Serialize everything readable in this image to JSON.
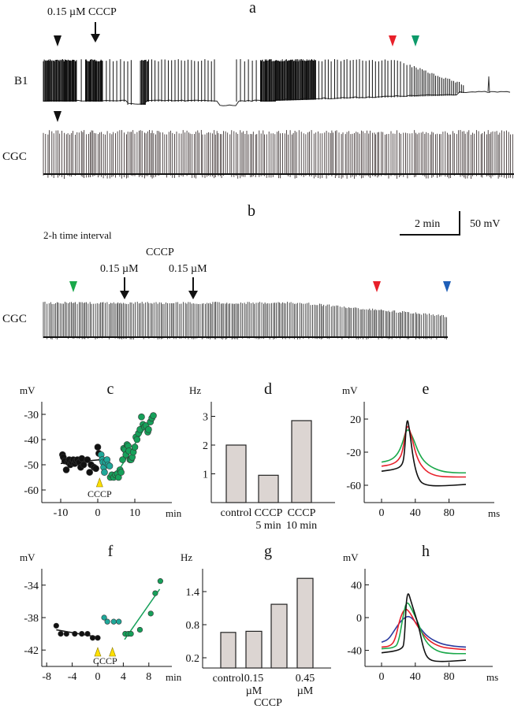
{
  "panel_a": {
    "letter": "a",
    "drug_label": "0.15 µM CCCP",
    "trace_labels": [
      "B1",
      "CGC"
    ],
    "marker_colors": {
      "black": "#111111",
      "red": "#e8202a",
      "green": "#0c9a6a"
    }
  },
  "panel_b": {
    "letter": "b",
    "interval_label": "2-h time interval",
    "drug_label": "CCCP",
    "dose_labels": [
      "0.15 µM",
      "0.15 µM"
    ],
    "trace_label": "CGC",
    "scale_time": "2 min",
    "scale_voltage": "50 mV",
    "marker_colors": {
      "green": "#1aa84a",
      "red": "#e8202a",
      "blue": "#1f5fb8"
    }
  },
  "chart_data": [
    {
      "panel": "c",
      "type": "scatter",
      "ylabel": "mV",
      "xlabel": "min",
      "xlim": [
        -14,
        20
      ],
      "ylim": [
        -65,
        -25
      ],
      "xticks": [
        "-10",
        "0",
        "10"
      ],
      "yticks": [
        "-30",
        "-40",
        "-50",
        "-60"
      ],
      "annotation": "CCCP",
      "annotation_x": 0.5,
      "series": [
        {
          "color": "#111111",
          "points": [
            [
              -9.5,
              -46
            ],
            [
              -9.3,
              -47
            ],
            [
              -8.9,
              -48.5
            ],
            [
              -8.5,
              -52
            ],
            [
              -8,
              -49
            ],
            [
              -7.7,
              -48
            ],
            [
              -7.4,
              -50
            ],
            [
              -7,
              -49
            ],
            [
              -6.6,
              -48
            ],
            [
              -6.2,
              -49.5
            ],
            [
              -5.9,
              -48.5
            ],
            [
              -5.5,
              -48
            ],
            [
              -5,
              -49
            ],
            [
              -4.6,
              -51
            ],
            [
              -4.3,
              -47.5
            ],
            [
              -3.8,
              -50
            ],
            [
              -2.8,
              -48
            ],
            [
              -2.2,
              -53
            ],
            [
              -1.8,
              -50
            ],
            [
              -1,
              -51
            ],
            [
              -0.5,
              -51.5
            ],
            [
              0,
              -43
            ],
            [
              0.3,
              -45.5
            ]
          ],
          "fit": [
            [
              -10,
              -49.5
            ],
            [
              0.5,
              -48
            ]
          ]
        },
        {
          "color": "#1fa89a",
          "points": [
            [
              0.9,
              -46
            ],
            [
              1.2,
              -48
            ],
            [
              1.4,
              -49
            ],
            [
              1.6,
              -51
            ],
            [
              1.8,
              -53
            ],
            [
              2.1,
              -49
            ],
            [
              2.5,
              -48
            ],
            [
              2.8,
              -50
            ],
            [
              3.2,
              -50.5
            ]
          ]
        },
        {
          "color": "#16a05a",
          "points": [
            [
              3.4,
              -55
            ],
            [
              3.8,
              -54
            ],
            [
              4.3,
              -55
            ],
            [
              4.8,
              -54
            ],
            [
              5.3,
              -53.5
            ],
            [
              5.6,
              -55
            ],
            [
              6,
              -52
            ],
            [
              6.3,
              -53
            ],
            [
              6.7,
              -48
            ],
            [
              7,
              -43.5
            ],
            [
              7.3,
              -44
            ],
            [
              7.6,
              -46
            ],
            [
              7.9,
              -42
            ],
            [
              8.2,
              -42.5
            ],
            [
              8.4,
              -44.5
            ],
            [
              8.7,
              -48
            ],
            [
              9,
              -48
            ],
            [
              9.3,
              -47
            ],
            [
              9.6,
              -45
            ],
            [
              10,
              -43
            ],
            [
              10.3,
              -39
            ],
            [
              10.6,
              -40
            ],
            [
              11,
              -37.5
            ],
            [
              11.4,
              -36
            ],
            [
              11.8,
              -31
            ],
            [
              12.2,
              -34
            ],
            [
              12.6,
              -35
            ],
            [
              13,
              -34.5
            ],
            [
              13.5,
              -37
            ],
            [
              13.7,
              -36
            ],
            [
              14.2,
              -33
            ],
            [
              14.6,
              -31.5
            ],
            [
              15,
              -30.5
            ]
          ],
          "fit": [
            [
              4.5,
              -55
            ],
            [
              14.5,
              -31
            ]
          ]
        }
      ]
    },
    {
      "panel": "d",
      "type": "bar",
      "ylabel": "Hz",
      "ylim": [
        0,
        3.3
      ],
      "yticks": [
        "1",
        "2",
        "3"
      ],
      "categories": [
        [
          "control"
        ],
        [
          "CCCP",
          "5 min"
        ],
        [
          "CCCP",
          "10 min"
        ]
      ],
      "values": [
        2.0,
        0.95,
        2.85
      ],
      "bar_color": "#dcd5d2"
    },
    {
      "panel": "e",
      "type": "line",
      "ylabel": "mV",
      "xlabel": "ms",
      "xlim": [
        -20,
        100
      ],
      "ylim": [
        -80,
        40
      ],
      "xticks": [
        "0",
        "40",
        "80"
      ],
      "yticks": [
        "20",
        "-20",
        "-60"
      ],
      "series": [
        {
          "color": "#1aa84a",
          "points": [
            [
              0,
              -32
            ],
            [
              10,
              -30
            ],
            [
              18,
              -24
            ],
            [
              24,
              -12
            ],
            [
              30,
              10
            ],
            [
              36,
              1
            ],
            [
              45,
              -24
            ],
            [
              55,
              -36
            ],
            [
              70,
              -43
            ],
            [
              85,
              -45
            ],
            [
              100,
              -45
            ]
          ]
        },
        {
          "color": "#e8202a",
          "points": [
            [
              0,
              -37
            ],
            [
              12,
              -35
            ],
            [
              20,
              -30
            ],
            [
              25,
              -20
            ],
            [
              30,
              16
            ],
            [
              35,
              2
            ],
            [
              42,
              -28
            ],
            [
              52,
              -43
            ],
            [
              65,
              -49
            ],
            [
              80,
              -50
            ],
            [
              100,
              -50
            ]
          ]
        },
        {
          "color": "#111111",
          "points": [
            [
              0,
              -43
            ],
            [
              15,
              -41
            ],
            [
              24,
              -37
            ],
            [
              27,
              -25
            ],
            [
              30,
              24
            ],
            [
              33,
              8
            ],
            [
              38,
              -32
            ],
            [
              44,
              -54
            ],
            [
              52,
              -60
            ],
            [
              70,
              -61
            ],
            [
              100,
              -59
            ]
          ]
        }
      ]
    },
    {
      "panel": "f",
      "type": "scatter",
      "ylabel": "mV",
      "xlabel": "min",
      "xlim": [
        -9,
        11
      ],
      "ylim": [
        -44,
        -32
      ],
      "xticks": [
        "-8",
        "-4",
        "0",
        "4",
        "8"
      ],
      "yticks": [
        "-34",
        "-38",
        "-42"
      ],
      "annotation": "CCCP",
      "annotation_x": [
        0,
        2.3
      ],
      "series": [
        {
          "color": "#111111",
          "points": [
            [
              -6.5,
              -39
            ],
            [
              -5.8,
              -40
            ],
            [
              -4.9,
              -40
            ],
            [
              -3.6,
              -40
            ],
            [
              -2.5,
              -40
            ],
            [
              -1.6,
              -40
            ],
            [
              -0.8,
              -40.5
            ],
            [
              0,
              -40.5
            ]
          ],
          "fit": [
            [
              -6.5,
              -39.5
            ],
            [
              0,
              -40.4
            ]
          ]
        },
        {
          "color": "#1fa89a",
          "points": [
            [
              1,
              -38
            ],
            [
              1.5,
              -38.5
            ],
            [
              2.5,
              -38.5
            ],
            [
              3.3,
              -38.5
            ]
          ]
        },
        {
          "color": "#16a05a",
          "points": [
            [
              4.3,
              -40
            ],
            [
              4.8,
              -40
            ],
            [
              5.2,
              -40
            ],
            [
              6.6,
              -39.5
            ],
            [
              8.3,
              -37.5
            ],
            [
              9,
              -35
            ],
            [
              9.8,
              -33.5
            ]
          ],
          "fit": [
            [
              4.2,
              -40.7
            ],
            [
              9.7,
              -34.5
            ]
          ]
        }
      ]
    },
    {
      "panel": "g",
      "type": "bar",
      "ylabel": "Hz",
      "ylim": [
        0,
        1.8
      ],
      "yticks": [
        "1.4",
        "0.8",
        "0.2"
      ],
      "categories": [
        [
          "control"
        ],
        [
          "0.15",
          "µM"
        ],
        [
          ""
        ],
        [
          "0.45",
          "µM"
        ]
      ],
      "group_label": "CCCP",
      "values": [
        0.66,
        0.68,
        1.17,
        1.64
      ],
      "bar_color": "#dcd5d2"
    },
    {
      "panel": "h",
      "type": "line",
      "ylabel": "mV",
      "xlabel": "ms",
      "xlim": [
        -20,
        100
      ],
      "ylim": [
        -60,
        60
      ],
      "xticks": [
        "0",
        "40",
        "80"
      ],
      "yticks": [
        "40",
        "0",
        "-40"
      ],
      "series": [
        {
          "color": "#2a3aa0",
          "points": [
            [
              0,
              -30
            ],
            [
              8,
              -27
            ],
            [
              15,
              -16
            ],
            [
              22,
              -5
            ],
            [
              30,
              2
            ],
            [
              36,
              0
            ],
            [
              45,
              -12
            ],
            [
              55,
              -24
            ],
            [
              70,
              -32
            ],
            [
              85,
              -35
            ],
            [
              100,
              -36
            ]
          ]
        },
        {
          "color": "#e8202a",
          "points": [
            [
              0,
              -36
            ],
            [
              10,
              -35
            ],
            [
              16,
              -28
            ],
            [
              22,
              0
            ],
            [
              28,
              12
            ],
            [
              34,
              6
            ],
            [
              42,
              -10
            ],
            [
              55,
              -28
            ],
            [
              70,
              -36
            ],
            [
              85,
              -38
            ],
            [
              100,
              -39
            ]
          ]
        },
        {
          "color": "#1aa84a",
          "points": [
            [
              0,
              -38
            ],
            [
              14,
              -37
            ],
            [
              20,
              -32
            ],
            [
              26,
              5
            ],
            [
              30,
              21
            ],
            [
              36,
              10
            ],
            [
              44,
              -8
            ],
            [
              52,
              -30
            ],
            [
              65,
              -41
            ],
            [
              80,
              -44
            ],
            [
              100,
              -44
            ]
          ]
        },
        {
          "color": "#111111",
          "points": [
            [
              0,
              -43
            ],
            [
              15,
              -41
            ],
            [
              24,
              -38
            ],
            [
              27,
              -32
            ],
            [
              30,
              37
            ],
            [
              36,
              16
            ],
            [
              44,
              -10
            ],
            [
              50,
              -40
            ],
            [
              56,
              -52
            ],
            [
              70,
              -54
            ],
            [
              100,
              -52
            ]
          ]
        }
      ]
    }
  ]
}
